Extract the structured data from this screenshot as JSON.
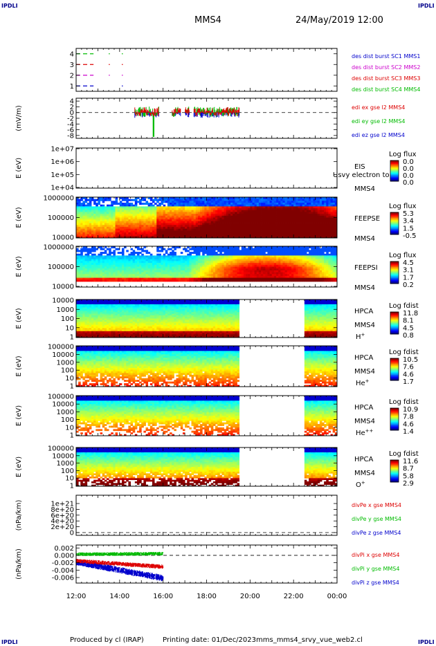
{
  "header": {
    "corner_label": "IPDLI",
    "spacecraft": "MMS4",
    "datetime": "24/May/2019 12:00"
  },
  "footer": {
    "produced_by": "Produced by cl (IRAP)",
    "printing_date": "Printing date: 01/Dec/2023",
    "file": "mms_mms4_srvy_vue_web2.cl"
  },
  "colors": {
    "mms1": "#0000cc",
    "mms2": "#cc00cc",
    "mms3": "#dd0000",
    "mms4": "#00bb00",
    "x": "#dd0000",
    "y": "#00bb00",
    "z": "#0000cc"
  },
  "chart_data": [
    {
      "type": "line",
      "panel": "burst",
      "ylabel": "",
      "yticks": [
        "1",
        "2",
        "3",
        "4"
      ],
      "ylim": [
        0.5,
        4.5
      ],
      "series": [
        {
          "name": "des dist burst SC1 MMS1",
          "color": "#0000cc",
          "y": 1,
          "segments": [
            [
              12.0,
              12.8
            ],
            [
              14.1,
              14.15
            ]
          ]
        },
        {
          "name": "des dist burst SC2 MMS2",
          "color": "#cc00cc",
          "y": 2,
          "segments": [
            [
              12.0,
              12.8
            ],
            [
              13.5,
              13.55
            ],
            [
              14.1,
              14.15
            ]
          ]
        },
        {
          "name": "des dist burst SC3 MMS3",
          "color": "#dd0000",
          "y": 3,
          "segments": [
            [
              12.0,
              12.8
            ],
            [
              13.5,
              13.55
            ],
            [
              14.1,
              14.15
            ]
          ]
        },
        {
          "name": "des dist burst SC4 MMS4",
          "color": "#00bb00",
          "y": 4,
          "segments": [
            [
              12.0,
              12.8
            ],
            [
              13.5,
              13.55
            ],
            [
              14.1,
              14.15
            ]
          ]
        }
      ]
    },
    {
      "type": "line",
      "panel": "edi",
      "ylabel": "(mV/m)",
      "yticks": [
        "4",
        "2",
        "0",
        "-2",
        "-4",
        "-6",
        "-8"
      ],
      "ylim": [
        -9,
        5
      ],
      "series": [
        {
          "name": "edi ex gse l2 MMS4",
          "color": "#dd0000"
        },
        {
          "name": "edi ey gse l2 MMS4",
          "color": "#00bb00"
        },
        {
          "name": "edi ez gse l2 MMS4",
          "color": "#0000cc"
        }
      ],
      "data_range_hours": [
        14.7,
        19.5
      ]
    },
    {
      "type": "heatmap",
      "panel": "eis",
      "ylabel": "E (eV)",
      "yticks": [
        "1e+07",
        "1e+06",
        "1e+05",
        "1e+04"
      ],
      "instrument": "EIS",
      "spacecraft": "MMS4",
      "overlay_text": "Usvy electron to",
      "colorbar_title": "Log flux",
      "colorbar_ticks": [
        "0.0",
        "0.0",
        "0.0",
        "0.0"
      ]
    },
    {
      "type": "heatmap",
      "panel": "feepse",
      "ylabel": "E (eV)",
      "yticks": [
        "1000000",
        "100000",
        "10000"
      ],
      "instrument": "FEEPSE",
      "spacecraft": "MMS4",
      "colorbar_title": "Log flux",
      "colorbar_ticks": [
        "5.3",
        "3.4",
        "1.5",
        "-0.5"
      ]
    },
    {
      "type": "heatmap",
      "panel": "feepsi",
      "ylabel": "E (eV)",
      "yticks": [
        "1000000",
        "100000",
        "10000"
      ],
      "instrument": "FEEPSI",
      "spacecraft": "MMS4",
      "colorbar_title": "Log flux",
      "colorbar_ticks": [
        "4.5",
        "3.1",
        "1.7",
        "0.2"
      ]
    },
    {
      "type": "heatmap",
      "panel": "hpca_h",
      "ylabel": "E (eV)",
      "yticks": [
        "10000",
        "1000",
        "100",
        "10",
        "1"
      ],
      "instrument": "HPCA",
      "spacecraft": "MMS4",
      "species": "H",
      "charge": "+",
      "colorbar_title": "Log fdist",
      "colorbar_ticks": [
        "11.8",
        "8.1",
        "4.5",
        "0.8"
      ],
      "gap_hours": [
        19.5,
        22.5
      ]
    },
    {
      "type": "heatmap",
      "panel": "hpca_he",
      "ylabel": "E (eV)",
      "yticks": [
        "100000",
        "10000",
        "1000",
        "100",
        "10",
        "1"
      ],
      "instrument": "HPCA",
      "spacecraft": "MMS4",
      "species": "He",
      "charge": "+",
      "colorbar_title": "Log fdist",
      "colorbar_ticks": [
        "10.5",
        "7.6",
        "4.6",
        "1.7"
      ],
      "gap_hours": [
        19.5,
        22.5
      ]
    },
    {
      "type": "heatmap",
      "panel": "hpca_he2",
      "ylabel": "E (eV)",
      "yticks": [
        "100000",
        "10000",
        "1000",
        "100",
        "10",
        "1"
      ],
      "instrument": "HPCA",
      "spacecraft": "MMS4",
      "species": "He",
      "charge": "++",
      "colorbar_title": "Log fdist",
      "colorbar_ticks": [
        "10.9",
        "7.8",
        "4.6",
        "1.4"
      ],
      "gap_hours": [
        19.5,
        22.5
      ]
    },
    {
      "type": "heatmap",
      "panel": "hpca_o",
      "ylabel": "E (eV)",
      "yticks": [
        "100000",
        "10000",
        "1000",
        "100",
        "10",
        "1"
      ],
      "instrument": "HPCA",
      "spacecraft": "MMS4",
      "species": "O",
      "charge": "+",
      "colorbar_title": "Log fdist",
      "colorbar_ticks": [
        "11.6",
        "8.7",
        "5.8",
        "2.9"
      ],
      "gap_hours": [
        19.5,
        22.5
      ]
    },
    {
      "type": "line",
      "panel": "divpe",
      "ylabel": "(nPa/km)",
      "yticks": [
        "1e+21",
        "8e+20",
        "6e+20",
        "4e+20",
        "2e+20",
        "0"
      ],
      "series": [
        {
          "name": "divPe x gse MMS4",
          "color": "#dd0000"
        },
        {
          "name": "divPe y gse MMS4",
          "color": "#00bb00"
        },
        {
          "name": "divPe z gse MMS4",
          "color": "#0000cc"
        }
      ]
    },
    {
      "type": "line",
      "panel": "divpi",
      "ylabel": "(nPa/km)",
      "yticks": [
        "0.002",
        "0.000",
        "-0.002",
        "-0.004",
        "-0.006"
      ],
      "ylim": [
        -0.0075,
        0.0028
      ],
      "series": [
        {
          "name": "divPi x gse MMS4",
          "color": "#dd0000"
        },
        {
          "name": "divPi y gse MMS4",
          "color": "#00bb00"
        },
        {
          "name": "divPi z gse MMS4",
          "color": "#0000cc"
        }
      ],
      "data_range_hours": [
        12.0,
        16.0
      ]
    }
  ],
  "time_axis": {
    "ticks": [
      "12:00",
      "14:00",
      "16:00",
      "18:00",
      "20:00",
      "22:00",
      "00:00"
    ],
    "start_hour": 12,
    "end_hour": 24
  }
}
